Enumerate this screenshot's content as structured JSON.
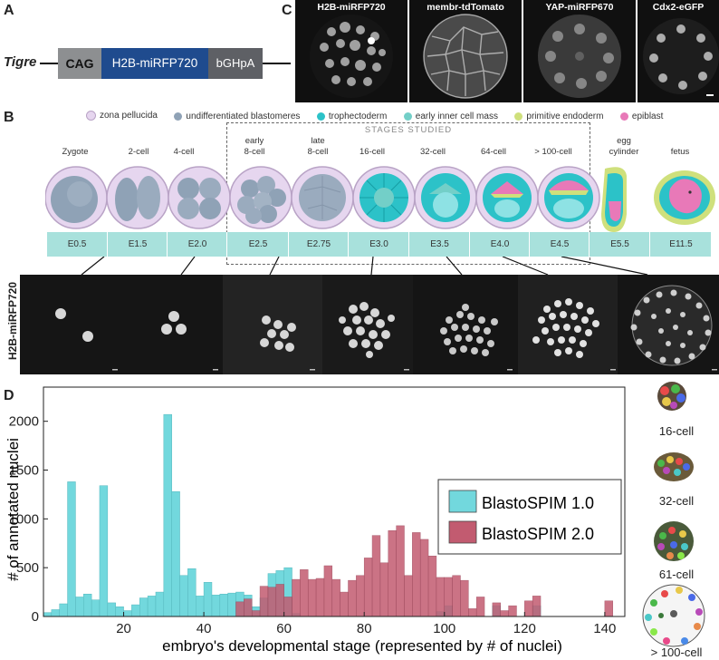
{
  "panels": {
    "a": "A",
    "b": "B",
    "c": "C",
    "d": "D"
  },
  "construct": {
    "locus": "Tigre",
    "promoter": "CAG",
    "gene": "H2B-miRFP720",
    "polyA": "bGHpA",
    "colors": {
      "promoter": "#8d8f91",
      "gene": "#1f4b8e",
      "polyA": "#5e6065"
    }
  },
  "channels": [
    "H2B-miRFP720",
    "membr-tdTomato",
    "YAP-miRFP670",
    "Cdx2-eGFP"
  ],
  "legend": [
    {
      "label": "zona pellucida",
      "color": "#e6d6ef"
    },
    {
      "label": "undifferentiated blastomeres",
      "color": "#8fa2b6"
    },
    {
      "label": "trophectoderm",
      "color": "#2cc2c8"
    },
    {
      "label": "early inner cell mass",
      "color": "#73cfc8"
    },
    {
      "label": "primitive endoderm",
      "color": "#cfe07c"
    },
    {
      "label": "epiblast",
      "color": "#e879b8"
    }
  ],
  "stages_box_label": "STAGES STUDIED",
  "stages": [
    {
      "l1": "",
      "l2": "Zygote",
      "day": "E0.5"
    },
    {
      "l1": "",
      "l2": "2-cell",
      "day": "E1.5"
    },
    {
      "l1": "",
      "l2": "4-cell",
      "day": "E2.0"
    },
    {
      "l1": "early",
      "l2": "8-cell",
      "day": "E2.5"
    },
    {
      "l1": "late",
      "l2": "8-cell",
      "day": "E2.75"
    },
    {
      "l1": "",
      "l2": "16-cell",
      "day": "E3.0"
    },
    {
      "l1": "",
      "l2": "32-cell",
      "day": "E3.5"
    },
    {
      "l1": "",
      "l2": "64-cell",
      "day": "E4.0"
    },
    {
      "l1": "",
      "l2": "> 100-cell",
      "day": "E4.5"
    },
    {
      "l1": "egg",
      "l2": "cylinder",
      "day": "E5.5"
    },
    {
      "l1": "",
      "l2": "fetus",
      "day": "E11.5"
    }
  ],
  "micro_label": "H2B-miRFP720",
  "seg_labels": [
    "16-cell",
    "32-cell",
    "61-cell",
    "> 100-cell"
  ],
  "chart_data": {
    "type": "bar",
    "xlabel": "embryo's developmental stage (represented by # of nuclei)",
    "ylabel": "# of annotated nuclei",
    "xlim": [
      0,
      145
    ],
    "ylim": [
      0,
      2350
    ],
    "xticks": [
      20,
      40,
      60,
      80,
      100,
      120,
      140
    ],
    "yticks": [
      0,
      500,
      1000,
      1500,
      2000
    ],
    "bin_width": 2,
    "legend_position": "right",
    "series": [
      {
        "name": "BlastoSPIM 1.0",
        "color": "#72d8dd",
        "x": [
          1,
          3,
          5,
          7,
          9,
          11,
          13,
          15,
          17,
          19,
          21,
          23,
          25,
          27,
          29,
          31,
          33,
          35,
          37,
          39,
          41,
          43,
          45,
          47,
          49,
          51,
          53,
          55,
          57,
          59,
          61,
          63,
          99,
          101,
          113,
          123
        ],
        "values": [
          40,
          70,
          130,
          1380,
          200,
          230,
          170,
          1340,
          140,
          100,
          60,
          120,
          190,
          210,
          250,
          2070,
          1280,
          420,
          490,
          210,
          350,
          220,
          230,
          240,
          250,
          220,
          100,
          190,
          440,
          470,
          500,
          30,
          50,
          110,
          110,
          110
        ]
      },
      {
        "name": "BlastoSPIM 2.0",
        "color": "#c25b70",
        "x": [
          49,
          51,
          53,
          55,
          57,
          59,
          61,
          63,
          65,
          67,
          69,
          71,
          73,
          75,
          77,
          79,
          81,
          83,
          85,
          87,
          89,
          91,
          93,
          95,
          97,
          99,
          101,
          103,
          105,
          107,
          109,
          113,
          115,
          117,
          121,
          123,
          141
        ],
        "values": [
          150,
          180,
          60,
          310,
          300,
          330,
          200,
          380,
          480,
          380,
          390,
          520,
          380,
          250,
          370,
          420,
          600,
          830,
          550,
          880,
          930,
          420,
          860,
          790,
          620,
          400,
          400,
          420,
          370,
          80,
          200,
          140,
          60,
          110,
          160,
          210,
          160
        ]
      }
    ]
  }
}
